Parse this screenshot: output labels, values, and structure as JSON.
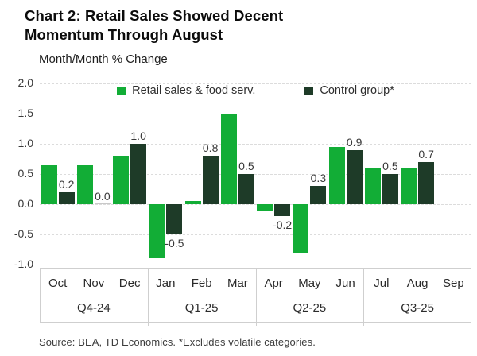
{
  "header": {
    "title": "Chart 2: Retail Sales Showed Decent Momentum Through August",
    "subtitle": "Month/Month % Change"
  },
  "footer": {
    "source": "Source: BEA, TD Economics. *Excludes volatile categories."
  },
  "colors": {
    "retail_green": "#12ad36",
    "control_dark_green": "#1e3b28",
    "zero_bar_gray": "#c9c9c9",
    "gridline": "#dcdcdc",
    "axis_box_border": "#cfcfcf",
    "text_dark": "#0c0c0c",
    "text_gray": "#3a3a3a"
  },
  "chart_data": {
    "type": "bar",
    "title": "Chart 2: Retail Sales Showed Decent Momentum Through August",
    "ylabel": "Month/Month % Change",
    "categories": [
      "Oct",
      "Nov",
      "Dec",
      "Jan",
      "Feb",
      "Mar",
      "Apr",
      "May",
      "Jun",
      "Jul",
      "Aug",
      "Sep"
    ],
    "quarter_groups": [
      {
        "label": "Q4-24",
        "months": [
          "Oct",
          "Nov",
          "Dec"
        ]
      },
      {
        "label": "Q1-25",
        "months": [
          "Jan",
          "Feb",
          "Mar"
        ]
      },
      {
        "label": "Q2-25",
        "months": [
          "Apr",
          "May",
          "Jun"
        ]
      },
      {
        "label": "Q3-25",
        "months": [
          "Jul",
          "Aug",
          "Sep"
        ]
      }
    ],
    "ylim": [
      -1.0,
      2.0
    ],
    "yticks": [
      2.0,
      1.5,
      1.0,
      0.5,
      0.0,
      -0.5,
      -1.0
    ],
    "grid": true,
    "legend_position": "top-center",
    "series": [
      {
        "name": "Retail sales & food serv.",
        "color": "#12ad36",
        "data_labels": false,
        "values": [
          0.65,
          0.65,
          0.8,
          -0.9,
          0.05,
          1.5,
          -0.1,
          -0.8,
          0.95,
          0.6,
          0.6,
          null
        ]
      },
      {
        "name": "Control group*",
        "color": "#1e3b28",
        "data_labels": true,
        "values": [
          0.2,
          0.0,
          1.0,
          -0.5,
          0.8,
          0.5,
          -0.2,
          0.3,
          0.9,
          0.5,
          0.7,
          null
        ]
      }
    ]
  }
}
